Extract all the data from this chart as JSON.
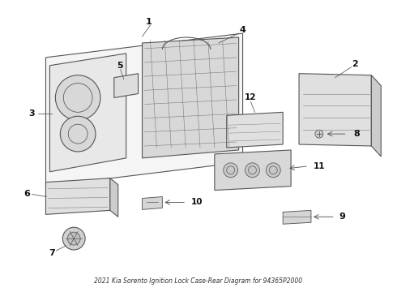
{
  "title": "2021 Kia Sorento Ignition Lock Case-Rear Diagram for 94365P2000",
  "bg_color": "#ffffff",
  "line_color": "#555555",
  "label_color": "#111111",
  "fig_width": 4.9,
  "fig_height": 3.6,
  "dpi": 100
}
